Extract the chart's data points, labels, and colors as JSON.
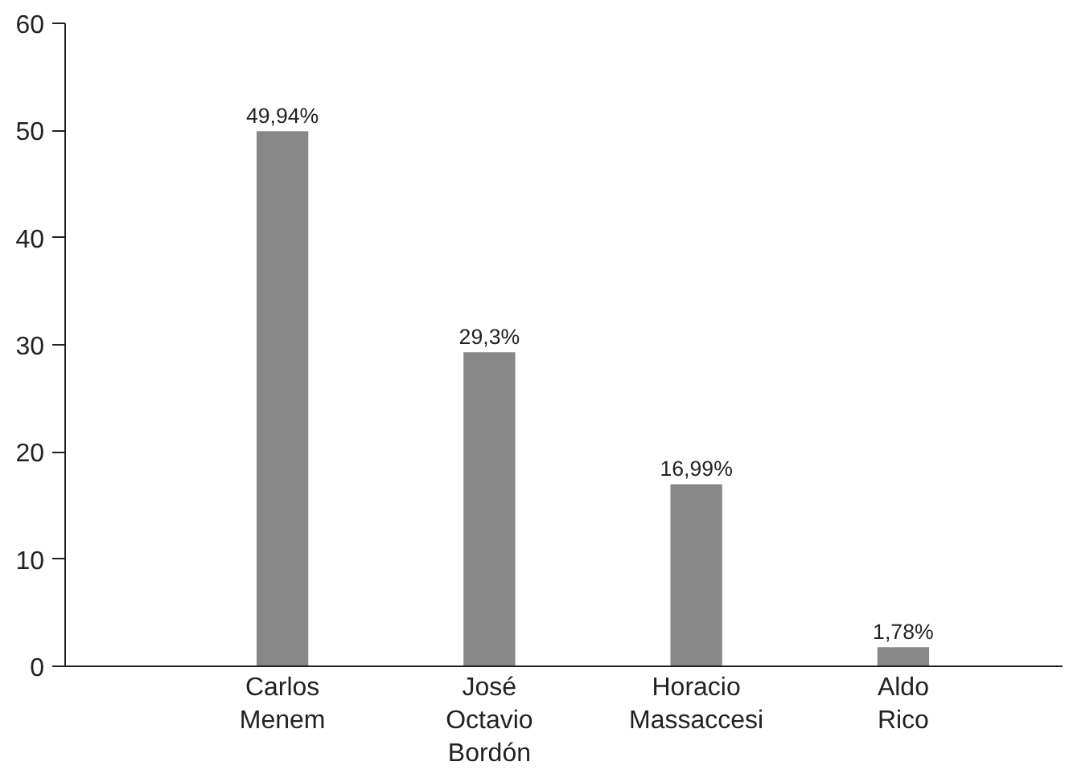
{
  "chart_data": {
    "type": "bar",
    "categories": [
      "Carlos Menem",
      "José Octavio Bordón",
      "Horacio Massaccesi",
      "Aldo Rico"
    ],
    "values": [
      49.94,
      29.3,
      16.99,
      1.78
    ],
    "value_labels": [
      "49,94%",
      "29,3%",
      "16,99%",
      "1,78%"
    ],
    "color": "#878787",
    "ylim": [
      0,
      60
    ],
    "yticks": [
      0,
      10,
      20,
      30,
      40,
      50,
      60
    ],
    "grid": false
  }
}
